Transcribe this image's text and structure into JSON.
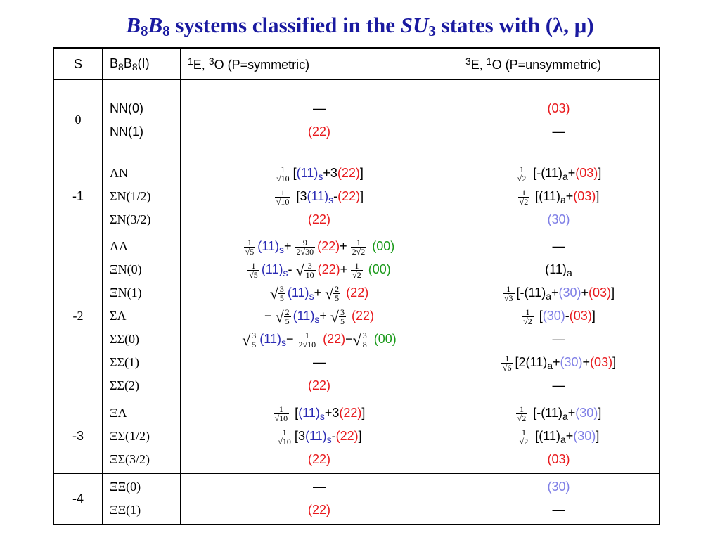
{
  "title": {
    "b1": "B",
    "b1sub": "8",
    "b2": "B",
    "b2sub": "8",
    "mid": " systems classified in the ",
    "su": "SU",
    "susub": "3",
    "end": " states with (λ, μ)"
  },
  "header": {
    "s": "S",
    "pair_a": "B",
    "pair_a_sub": "8",
    "pair_b": "B",
    "pair_b_sub": "8",
    "pair_tail": "(I)",
    "sym_sup1": "1",
    "sym_e": "E,  ",
    "sym_sup2": "3",
    "sym_text": "O  (P=symmetric)",
    "uns_sup1": "3",
    "uns_e": "E, ",
    "uns_sup2": "1",
    "uns_text": "O (P=unsymmetric)"
  },
  "rows": [
    {
      "s": "0",
      "pairs": [
        "NN(0)",
        "NN(1)"
      ],
      "sym": [
        "—",
        "(22)"
      ],
      "uns": [
        "(03)",
        "—"
      ]
    },
    {
      "s": "-1",
      "pairs": [
        "ΛN",
        "ΣN(1/2)",
        "ΣN(3/2)"
      ],
      "sym": [
        "[(11)s+3(22)]",
        "[3(11)s-(22)]",
        "(22)"
      ],
      "uns": [
        "[-(11)a+(03)]",
        "[(11)a+(03)]",
        "(30)"
      ]
    },
    {
      "s": "-2",
      "pairs": [
        "ΛΛ",
        "ΞN(0)",
        "ΞN(1)",
        "ΣΛ",
        "ΣΣ(0)",
        "ΣΣ(1)",
        "ΣΣ(2)"
      ],
      "sym": [
        "(11)s+ (22)+ (00)",
        "(11)s- (22)+ (00)",
        "(11)s+ (22)",
        "− (11)s+ (22)",
        "(11)s− (22)− (00)",
        "—",
        "(22)"
      ],
      "uns": [
        "—",
        "(11)a",
        "[-(11)a+(30)+(03)]",
        "[(30)-(03)]",
        "—",
        "[2(11)a+(30)+(03)]",
        "—"
      ]
    },
    {
      "s": "-3",
      "pairs": [
        "ΞΛ",
        "ΞΣ(1/2)",
        "ΞΣ(3/2)"
      ],
      "sym": [
        "[(11)s+3(22)]",
        "[3(11)s-(22)]",
        "(22)"
      ],
      "uns": [
        "[-(11)a+(30)]",
        "[(11)a+(30)]",
        "(03)"
      ]
    },
    {
      "s": "-4",
      "pairs": [
        "ΞΞ(0)",
        "ΞΞ(1)"
      ],
      "sym": [
        "—",
        "(22)"
      ],
      "uns": [
        "(30)",
        "—"
      ]
    }
  ],
  "tokens": {
    "dash": "—",
    "minus": "−",
    "plus": "+",
    "lb": "[",
    "rb": "]",
    "three": "3",
    "two": "2",
    "p03": "(03)",
    "p22": "(22)",
    "p11": "(11)",
    "p00": "(00)",
    "p30": "(30)",
    "s": "s",
    "a": "a",
    "hyphen": "-",
    "sqrt": "√",
    "f1_10n": "1",
    "f1_10d": "√10",
    "f1_2n": "1",
    "f1_2d": "√2",
    "f1_5n": "1",
    "f1_5d": "√5",
    "f9_230n": "9",
    "f9_230d": "2√30",
    "f1_22n": "1",
    "f1_22d": "2√2",
    "f3_10n": "3",
    "f3_10d": "10",
    "f3_5n": "3",
    "f3_5d": "5",
    "f2_5n": "2",
    "f2_5d": "5",
    "f1_210n": "1",
    "f1_210d": "2√10",
    "f3_8n": "3",
    "f3_8d": "8",
    "f1_3n": "1",
    "f1_3d": "√3",
    "f1_6n": "1",
    "f1_6d": "√6"
  },
  "colors": {
    "title": "#1a1aa0",
    "red": "#e8191d",
    "blue": "#2a2ab4",
    "light_blue": "#7f7fe6",
    "green": "#1a9a1a"
  }
}
